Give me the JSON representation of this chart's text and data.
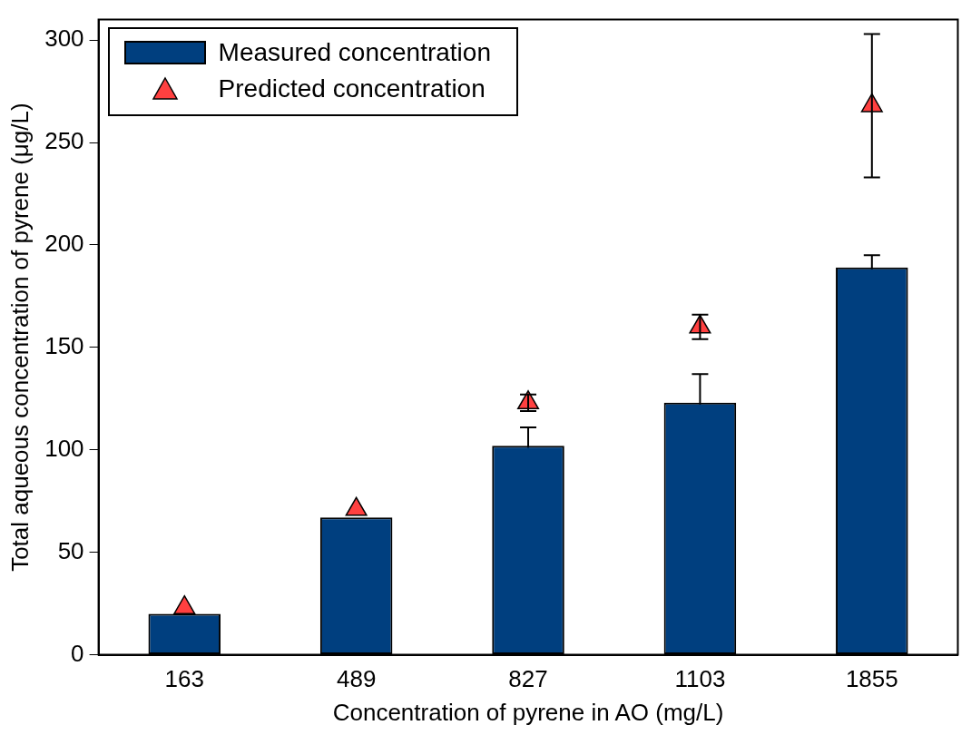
{
  "chart_data": {
    "type": "bar",
    "xlabel": "Concentration of pyrene in AO (mg/L)",
    "ylabel": "Total aqueous concentration of pyrene (μg/L)",
    "categories": [
      "163",
      "489",
      "827",
      "1103",
      "1855"
    ],
    "series": [
      {
        "name": "Measured concentration",
        "color": "#003f7f",
        "values": [
          20,
          67,
          102,
          123,
          189
        ],
        "errors": [
          null,
          null,
          9,
          14,
          6
        ]
      },
      {
        "name": "Predicted concentration",
        "type": "scatter",
        "color": "#ff4040",
        "values": [
          23,
          71,
          123,
          160,
          268
        ],
        "errors": [
          null,
          null,
          4,
          6,
          35
        ]
      }
    ],
    "ylim": [
      0,
      310
    ],
    "yticks": [
      0,
      50,
      100,
      150,
      200,
      250,
      300
    ],
    "grid": false,
    "legend": "top left",
    "marker": "triangle"
  }
}
